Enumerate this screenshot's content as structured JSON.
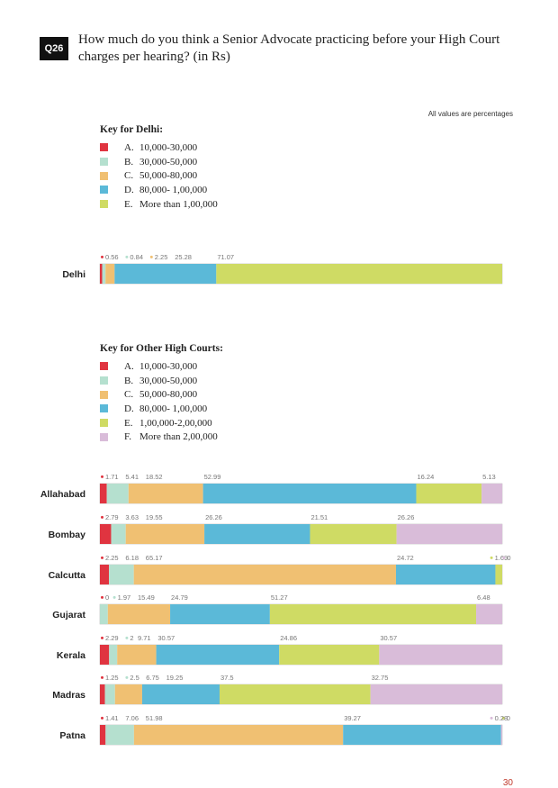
{
  "question": {
    "number": "Q26",
    "text": "How much do you think a Senior Advocate practicing before your High Court charges per hearing? (in Rs)"
  },
  "note": "All values are percentages",
  "colors": {
    "A": "#e03440",
    "B": "#b5e0cf",
    "C": "#f0c072",
    "D": "#5bb9d8",
    "E": "#cfdb64",
    "F": "#d9bcd9",
    "track_border": "#bbbbbb"
  },
  "key_delhi": {
    "title": "Key for Delhi:",
    "items": [
      {
        "letter": "A.",
        "label": "10,000-30,000",
        "color_key": "A"
      },
      {
        "letter": "B.",
        "label": "30,000-50,000",
        "color_key": "B"
      },
      {
        "letter": "C.",
        "label": "50,000-80,000",
        "color_key": "C"
      },
      {
        "letter": "D.",
        "label": "80,000- 1,00,000",
        "color_key": "D"
      },
      {
        "letter": "E.",
        "label": "More than 1,00,000",
        "color_key": "E"
      }
    ]
  },
  "key_others": {
    "title": "Key for Other High Courts:",
    "items": [
      {
        "letter": "A.",
        "label": "10,000-30,000",
        "color_key": "A"
      },
      {
        "letter": "B.",
        "label": "30,000-50,000",
        "color_key": "B"
      },
      {
        "letter": "C.",
        "label": "50,000-80,000",
        "color_key": "C"
      },
      {
        "letter": "D.",
        "label": "80,000- 1,00,000",
        "color_key": "D"
      },
      {
        "letter": "E.",
        "label": "1,00,000-2,00,000",
        "color_key": "E"
      },
      {
        "letter": "F.",
        "label": "More than 2,00,000",
        "color_key": "F"
      }
    ]
  },
  "chart_data": {
    "type": "bar",
    "orientation": "horizontal-stacked-100",
    "title": "How much do you think a Senior Advocate practicing before your High Court charges per hearing? (in Rs)",
    "unit": "percent",
    "groups": [
      {
        "name": "Delhi",
        "categories": [
          "A",
          "B",
          "C",
          "D",
          "E"
        ],
        "rows": [
          {
            "court": "Delhi",
            "values": [
              0.56,
              0.84,
              2.25,
              25.28,
              71.07
            ]
          }
        ]
      },
      {
        "name": "Other High Courts",
        "categories": [
          "A",
          "B",
          "C",
          "D",
          "E",
          "F"
        ],
        "rows": [
          {
            "court": "Allahabad",
            "values": [
              1.71,
              5.41,
              18.52,
              52.99,
              16.24,
              5.13
            ]
          },
          {
            "court": "Bombay",
            "values": [
              2.79,
              3.63,
              19.55,
              26.26,
              21.51,
              26.26
            ]
          },
          {
            "court": "Calcutta",
            "values": [
              2.25,
              6.18,
              65.17,
              24.72,
              1.69,
              0.0
            ]
          },
          {
            "court": "Gujarat",
            "values": [
              0.0,
              1.97,
              15.49,
              24.79,
              51.27,
              6.48
            ]
          },
          {
            "court": "Kerala",
            "values": [
              2.29,
              2.0,
              9.71,
              30.57,
              24.86,
              30.57
            ]
          },
          {
            "court": "Madras",
            "values": [
              1.25,
              2.5,
              6.75,
              19.25,
              37.5,
              32.75
            ]
          },
          {
            "court": "Patna",
            "values": [
              1.41,
              7.06,
              51.98,
              39.27,
              0.0,
              0.28
            ]
          }
        ]
      }
    ]
  },
  "page_number": "30"
}
